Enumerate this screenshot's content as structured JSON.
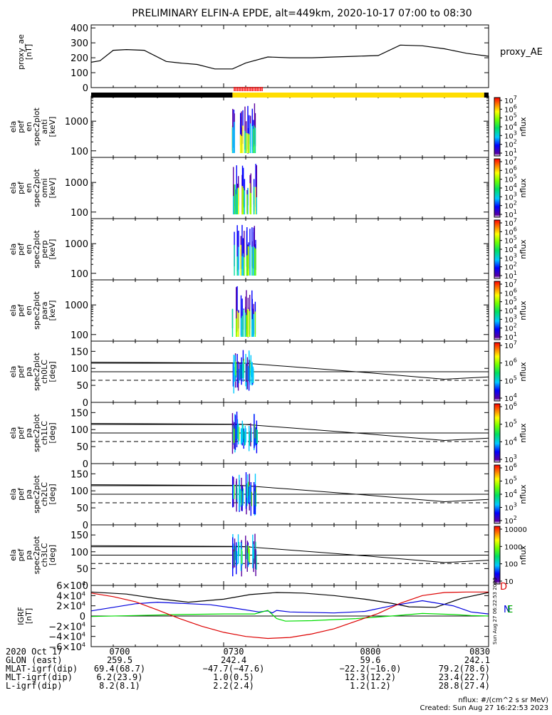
{
  "chart_data": {
    "title": "PRELIMINARY ELFIN-A EPDE, alt=449km, 2020-10-17 07:00 to 08:30",
    "x_range_min": [
      0,
      90
    ],
    "x_tick_minutes": [
      0,
      30,
      60,
      90
    ],
    "panels": [
      {
        "id": "proxy_ae",
        "type": "line",
        "ylabel": [
          "proxy_ae",
          "[nT]"
        ],
        "legend": "proxy_AE",
        "ylim": [
          0,
          420
        ],
        "yticks": [
          0,
          100,
          200,
          300,
          400
        ],
        "x": [
          0,
          2,
          5,
          8,
          12,
          17,
          20,
          24,
          28,
          32,
          35,
          40,
          45,
          50,
          55,
          60,
          65,
          70,
          75,
          80,
          85,
          90
        ],
        "y": [
          170,
          180,
          250,
          255,
          250,
          175,
          165,
          155,
          125,
          125,
          165,
          205,
          200,
          200,
          205,
          210,
          215,
          285,
          280,
          260,
          230,
          210
        ]
      },
      {
        "id": "en_anti",
        "type": "heatmap",
        "ylabel": [
          "ela",
          "pef",
          "en",
          "spec2plot",
          "anti",
          "[keV]"
        ],
        "ylog": true,
        "yticks": [
          100,
          1000
        ],
        "ytick_labels": [
          "100",
          "1000"
        ],
        "cbar_label": "nflux",
        "cbar_ticks": [
          "10",
          "10",
          "10",
          "10",
          "10",
          "10",
          "10"
        ],
        "cbar_exps": [
          "1",
          "2",
          "3",
          "4",
          "5",
          "6",
          "7"
        ]
      },
      {
        "id": "en_omni",
        "type": "heatmap",
        "ylabel": [
          "ela",
          "pef",
          "en",
          "spec2plot",
          "omni",
          "[keV]"
        ],
        "ylog": true,
        "yticks": [
          100,
          1000
        ],
        "ytick_labels": [
          "100",
          "1000"
        ],
        "cbar_label": "nflux",
        "cbar_ticks": [
          "10",
          "10",
          "10",
          "10",
          "10",
          "10",
          "10"
        ],
        "cbar_exps": [
          "1",
          "2",
          "3",
          "4",
          "5",
          "6",
          "7"
        ]
      },
      {
        "id": "en_perp",
        "type": "heatmap",
        "ylabel": [
          "ela",
          "pef",
          "en",
          "spec2plot",
          "perp",
          "[keV]"
        ],
        "ylog": true,
        "yticks": [
          100,
          1000
        ],
        "ytick_labels": [
          "100",
          "1000"
        ],
        "cbar_label": "nflux",
        "cbar_ticks": [
          "10",
          "10",
          "10",
          "10",
          "10",
          "10",
          "10"
        ],
        "cbar_exps": [
          "1",
          "2",
          "3",
          "4",
          "5",
          "6",
          "7"
        ]
      },
      {
        "id": "en_para",
        "type": "heatmap",
        "ylabel": [
          "ela",
          "pef",
          "en",
          "spec2plot",
          "para",
          "[keV]"
        ],
        "ylog": true,
        "yticks": [
          100,
          1000
        ],
        "ytick_labels": [
          "100",
          "1000"
        ],
        "cbar_label": "nflux",
        "cbar_ticks": [
          "10",
          "10",
          "10",
          "10",
          "10",
          "10",
          "10"
        ],
        "cbar_exps": [
          "1",
          "2",
          "3",
          "4",
          "5",
          "6",
          "7"
        ]
      },
      {
        "id": "pa_ch0",
        "type": "heatmap",
        "ylabel": [
          "ela",
          "pef",
          "pa",
          "spec2plot",
          "ch0LC",
          "[deg]"
        ],
        "ylim": [
          0,
          180
        ],
        "yticks": [
          0,
          50,
          100,
          150
        ],
        "ytick_labels": [
          "0",
          "50",
          "100",
          "150"
        ],
        "cbar_label": "nflux",
        "cbar_ticks": [
          "10",
          "10",
          "10",
          "10"
        ],
        "cbar_exps": [
          "4",
          "5",
          "6",
          "7"
        ]
      },
      {
        "id": "pa_ch1",
        "type": "heatmap",
        "ylabel": [
          "ela",
          "pef",
          "pa",
          "spec2plot",
          "ch1LC",
          "[deg]"
        ],
        "ylim": [
          0,
          180
        ],
        "yticks": [
          0,
          50,
          100,
          150
        ],
        "ytick_labels": [
          "0",
          "50",
          "100",
          "150"
        ],
        "cbar_label": "nflux",
        "cbar_ticks": [
          "10",
          "10",
          "10",
          "10"
        ],
        "cbar_exps": [
          "3",
          "4",
          "5",
          "6"
        ]
      },
      {
        "id": "pa_ch2",
        "type": "heatmap",
        "ylabel": [
          "ela",
          "pef",
          "pa",
          "spec2plot",
          "ch2LC",
          "[deg]"
        ],
        "ylim": [
          0,
          180
        ],
        "yticks": [
          0,
          50,
          100,
          150
        ],
        "ytick_labels": [
          "0",
          "50",
          "100",
          "150"
        ],
        "cbar_label": "nflux",
        "cbar_ticks": [
          "10",
          "10",
          "10",
          "10",
          "10"
        ],
        "cbar_exps": [
          "2",
          "3",
          "4",
          "5",
          "6"
        ]
      },
      {
        "id": "pa_ch3",
        "type": "heatmap",
        "ylabel": [
          "ela",
          "pef",
          "pa",
          "spec2plot",
          "ch3LC",
          "[deg]"
        ],
        "ylim": [
          0,
          180
        ],
        "yticks": [
          0,
          50,
          100,
          150
        ],
        "ytick_labels": [
          "0",
          "50",
          "100",
          "150"
        ],
        "cbar_label": "nflux",
        "cbar_ticks": [
          "10",
          "100",
          "1000",
          "10000"
        ],
        "cbar_exps": [
          "",
          "",
          "",
          ""
        ]
      },
      {
        "id": "igrf",
        "type": "line",
        "ylabel": [
          "IGRF",
          "[nT]"
        ],
        "ylim": [
          -60000,
          60000
        ],
        "yticks": [
          -60000,
          -40000,
          -20000,
          0,
          20000,
          40000,
          60000
        ],
        "ytick_labels": [
          "−6×10",
          "−4×10",
          "−2×10",
          "0",
          "2×10",
          "4×10",
          "6×10"
        ],
        "ytick_exps": [
          "4",
          "4",
          "4",
          "",
          "4",
          "4",
          "4"
        ],
        "series": [
          {
            "color": "#000000",
            "x": [
              0,
              8,
              15,
              22,
              30,
              36,
              42,
              48,
              55,
              62,
              68,
              72,
              78,
              84,
              90
            ],
            "y": [
              47000,
              43000,
              34000,
              27000,
              33000,
              42000,
              46000,
              45000,
              40000,
              33000,
              25000,
              18000,
              17000,
              35000,
              46000
            ]
          },
          {
            "color": "#0000dd",
            "x": [
              0,
              5,
              10,
              15,
              20,
              27,
              32,
              38,
              40,
              41,
              42,
              45,
              55,
              62,
              68,
              75,
              82,
              86,
              90
            ],
            "y": [
              10000,
              17000,
              24000,
              27000,
              25000,
              22000,
              16000,
              8000,
              10000,
              6000,
              11000,
              8000,
              6000,
              9000,
              20000,
              30000,
              20000,
              8000,
              4000
            ]
          },
          {
            "color": "#00dd00",
            "x": [
              0,
              10,
              20,
              30,
              37,
              40,
              42,
              44,
              50,
              60,
              68,
              75,
              82,
              86,
              90
            ],
            "y": [
              -1000,
              1000,
              3000,
              4000,
              4000,
              11000,
              -5000,
              -10000,
              -9000,
              -5000,
              0,
              5000,
              3000,
              1000,
              0
            ]
          },
          {
            "color": "#dd0000",
            "x": [
              0,
              5,
              10,
              15,
              20,
              25,
              30,
              35,
              40,
              45,
              50,
              55,
              60,
              65,
              70,
              75,
              80,
              85,
              90
            ],
            "y": [
              45000,
              38000,
              28000,
              12000,
              -5000,
              -20000,
              -32000,
              -40000,
              -44000,
              -42000,
              -35000,
              -25000,
              -10000,
              5000,
              25000,
              40000,
              46000,
              47000,
              47000
            ]
          }
        ],
        "right_letters": [
          "D",
          "N",
          "E"
        ]
      }
    ]
  },
  "status_bar": {
    "left_label": "",
    "right_label": ""
  },
  "footer": {
    "rows": [
      [
        "2020 Oct 17",
        "0700",
        "0730",
        "0800",
        "0830"
      ],
      [
        "GLON (east)",
        "259.5",
        "242.4",
        "59.6",
        "242.1"
      ],
      [
        "MLAT-igrf(dip)",
        "69.4(68.7)",
        "−47.7(−47.6)",
        "−22.2(−16.0)",
        "79.2(78.6)"
      ],
      [
        "MLT-igrf(dip)",
        "6.2(23.9)",
        "1.0(0.5)",
        "12.3(12.2)",
        "23.4(22.7)"
      ],
      [
        "L-igrf(dip)",
        "8.2(8.1)",
        "2.2(2.4)",
        "1.2(1.2)",
        "28.8(27.4)"
      ]
    ],
    "nflux_units": "nflux: #/(cm^2 s sr MeV)",
    "created": "Created: Sun Aug 27 16:22:53 2023",
    "side_stamp": "Sun Aug 27 06:22:53 2023"
  }
}
